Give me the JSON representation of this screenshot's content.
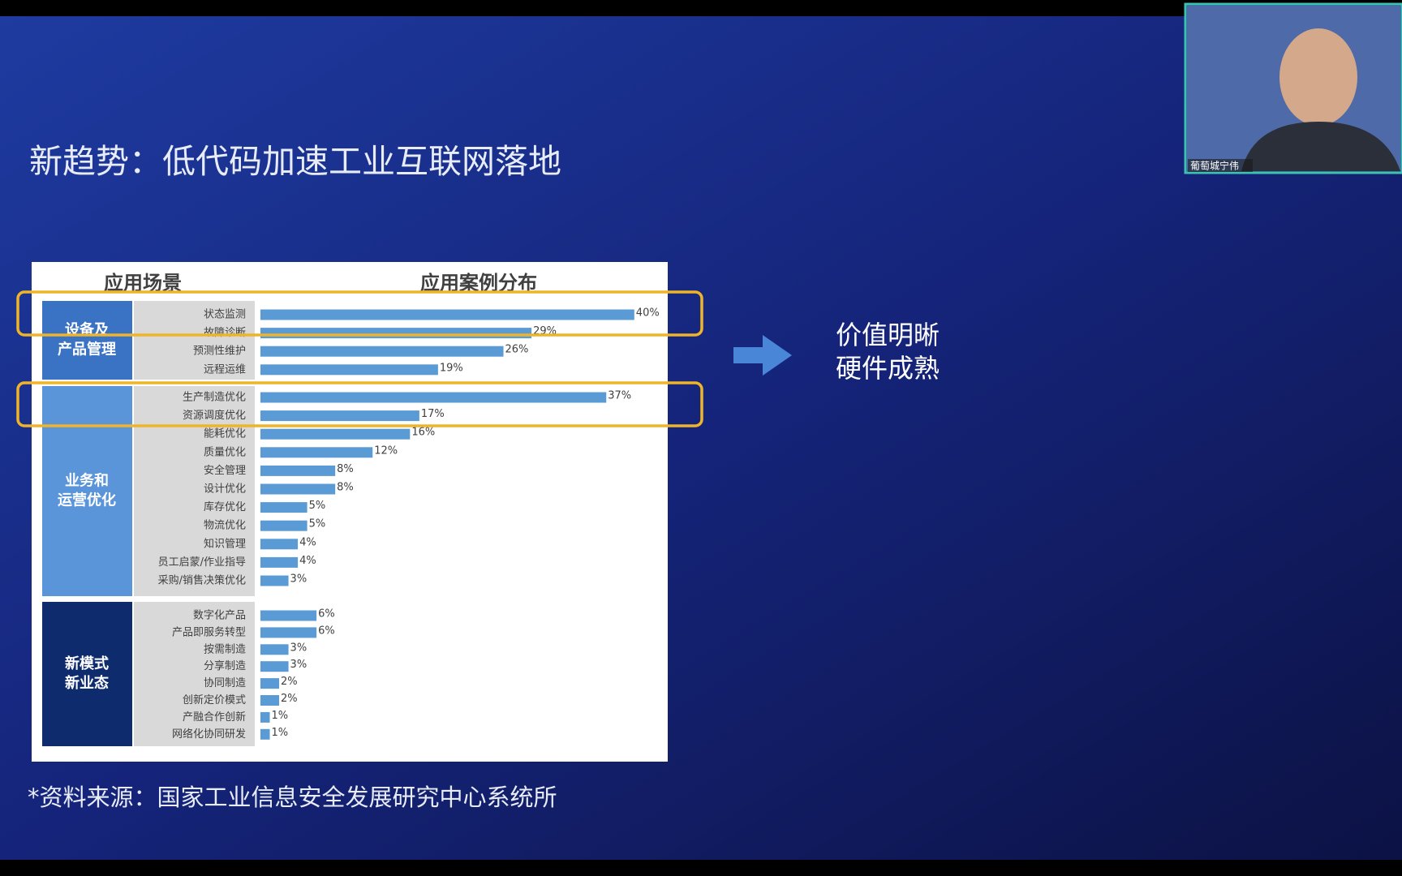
{
  "slide": {
    "title": "新趋势：低代码加速工业互联网落地",
    "side_text": [
      "价值明晰",
      "硬件成熟"
    ],
    "source": "*资料来源：国家工业信息安全发展研究中心系统所"
  },
  "chart_data": {
    "type": "bar",
    "color": "#5b9bd5",
    "headers": [
      "应用场景",
      "应用案例分布"
    ],
    "groups": [
      {
        "label_lines": [
          "设备及",
          "产品管理"
        ],
        "color": "#3a72c4",
        "categories": [
          "状态监测",
          "故障诊断",
          "预测性维护",
          "远程运维"
        ],
        "values": [
          40,
          29,
          26,
          19
        ],
        "value_labels": [
          "40%",
          "29%",
          "26%",
          "19%"
        ]
      },
      {
        "label_lines": [
          "业务和",
          "运营优化"
        ],
        "color": "#5b95d9",
        "categories": [
          "生产制造优化",
          "资源调度优化",
          "能耗优化",
          "质量优化",
          "安全管理",
          "设计优化",
          "库存优化",
          "物流优化",
          "知识管理",
          "员工启蒙/作业指导",
          "采购/销售决策优化"
        ],
        "values": [
          37,
          17,
          16,
          12,
          8,
          8,
          5,
          5,
          4,
          4,
          3
        ],
        "value_labels": [
          "37%",
          "17%",
          "16%",
          "12%",
          "8%",
          "8%",
          "5%",
          "5%",
          "4%",
          "4%",
          "3%"
        ]
      },
      {
        "label_lines": [
          "新模式",
          "新业态"
        ],
        "color": "#0e2b6e",
        "categories": [
          "数字化产品",
          "产品即服务转型",
          "按需制造",
          "分享制造",
          "协同制造",
          "创新定价模式",
          "产融合作创新",
          "网络化协同研发"
        ],
        "values": [
          6,
          6,
          3,
          3,
          2,
          2,
          1,
          1
        ],
        "value_labels": [
          "6%",
          "6%",
          "3%",
          "3%",
          "2%",
          "2%",
          "1%",
          "1%"
        ]
      }
    ]
  },
  "webcam": {
    "name": "葡萄城宁伟"
  }
}
